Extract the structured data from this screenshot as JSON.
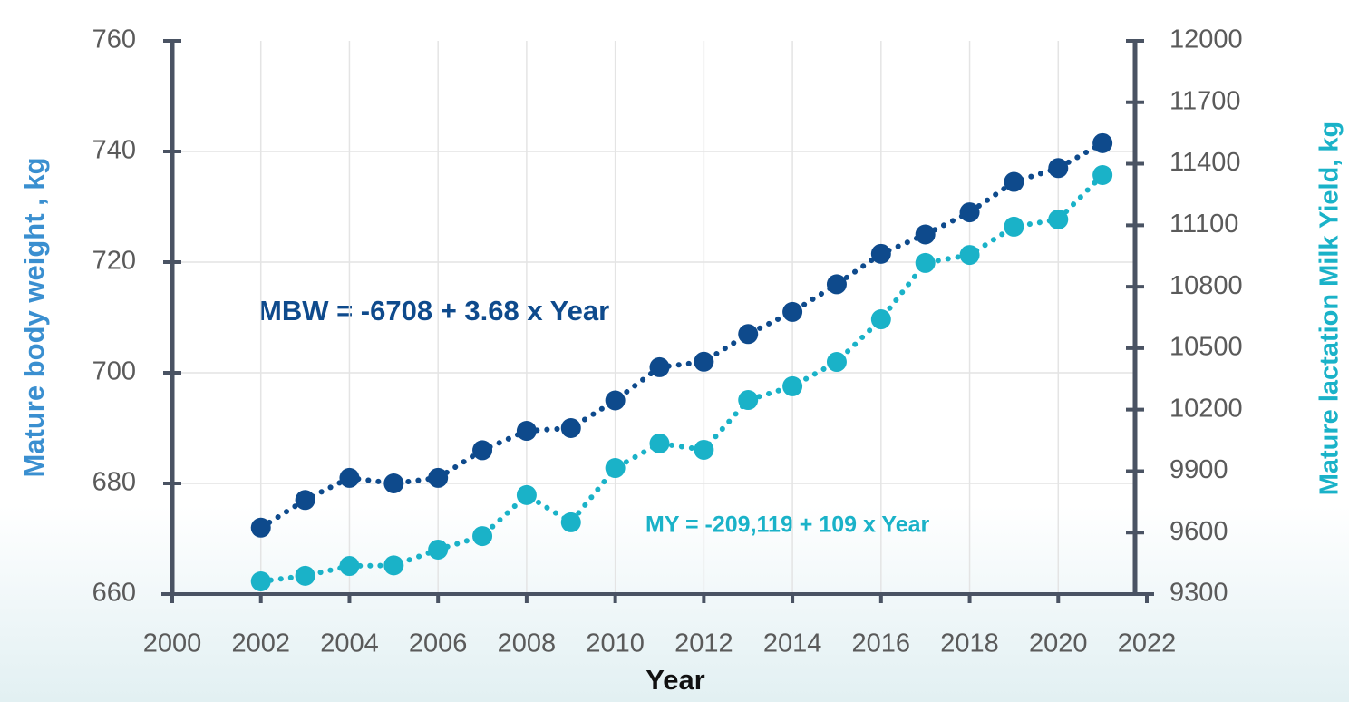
{
  "chart_data": {
    "type": "line",
    "x_label": "Year",
    "y_label": "Mature body weight , kg",
    "y2_label": "Mature lactation Milk Yield, kg",
    "annotations": [
      "MBW = -6708 + 3.68 x Year",
      "MY = -209,119 + 109 x Year"
    ],
    "x": [
      2002,
      2003,
      2004,
      2005,
      2006,
      2007,
      2008,
      2009,
      2010,
      2011,
      2012,
      2013,
      2014,
      2015,
      2016,
      2017,
      2018,
      2019,
      2020,
      2021
    ],
    "xlim": [
      2000,
      2022
    ],
    "xticks": [
      2000,
      2002,
      2004,
      2006,
      2008,
      2010,
      2012,
      2014,
      2016,
      2018,
      2020,
      2022
    ],
    "ylim": [
      660,
      760
    ],
    "yticks": [
      660,
      680,
      700,
      720,
      740,
      760
    ],
    "y2lim": [
      9300,
      12000
    ],
    "y2ticks": [
      9300,
      9600,
      9900,
      10200,
      10500,
      10800,
      11100,
      11400,
      11700,
      12000
    ],
    "grid": true,
    "series": [
      {
        "name": "MBW",
        "color": "#0e4a8c",
        "values": [
          672,
          677,
          681,
          680,
          681,
          686,
          689.5,
          690,
          695,
          701,
          702,
          707,
          711,
          716,
          721.5,
          725,
          729,
          734.5,
          737,
          741.5
        ]
      },
      {
        "name": "MY",
        "color": "#1ab2c8",
        "axis": "y2",
        "values": [
          9362,
          9389,
          9437,
          9440,
          9517,
          9583,
          9783,
          9650,
          9915,
          10035,
          10004,
          10247,
          10314,
          10433,
          10641,
          10916,
          10955,
          11093,
          11128,
          11345
        ]
      }
    ]
  }
}
